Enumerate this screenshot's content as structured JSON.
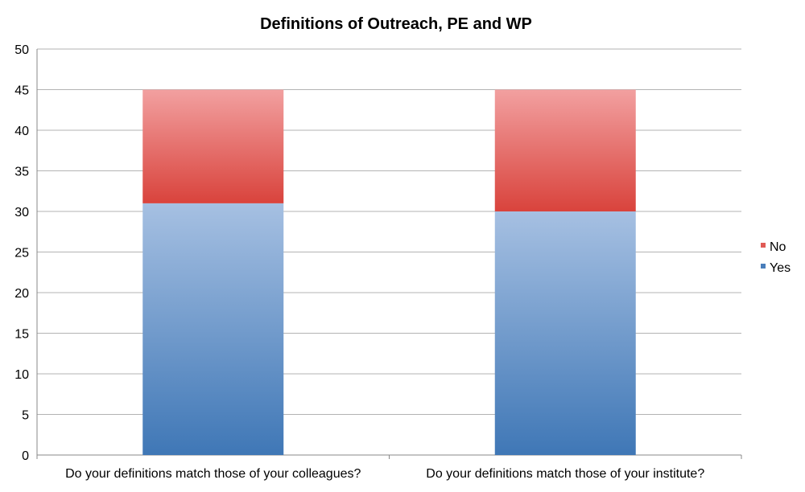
{
  "chart_data": {
    "type": "bar",
    "stacked": true,
    "title": "Definitions of Outreach, PE and WP",
    "xlabel": "",
    "ylabel": "",
    "categories": [
      "Do your definitions match those of your colleagues?",
      "Do your definitions match those of your institute?"
    ],
    "series": [
      {
        "name": "Yes",
        "values": [
          31,
          30
        ],
        "color": "#4a7ebb"
      },
      {
        "name": "No",
        "values": [
          14,
          15
        ],
        "color": "#d9423b"
      }
    ],
    "ylim": [
      0,
      50
    ],
    "yticks": [
      0,
      5,
      10,
      15,
      20,
      25,
      30,
      35,
      40,
      45,
      50
    ],
    "grid": true,
    "legend_position": "right"
  }
}
